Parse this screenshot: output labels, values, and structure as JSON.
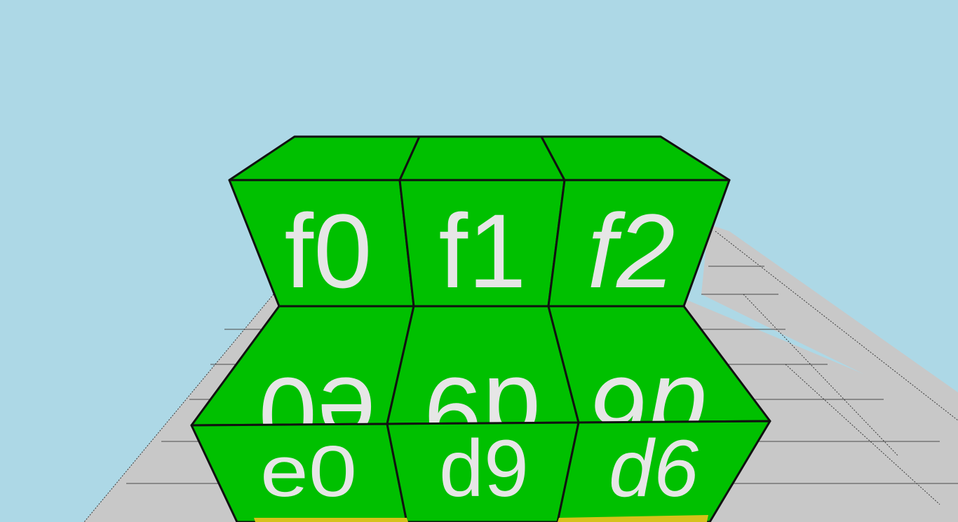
{
  "colors": {
    "sky": "#add8e6",
    "floor": "#c8c8c8",
    "cube_face": "#00c000",
    "cube_face_side": "#00b400",
    "label_text": "#e6e6e6",
    "edge": "#111111",
    "base_yellow": "#d6c21a"
  },
  "cubes": {
    "top_labels": [
      "f0",
      "f1",
      "f2"
    ],
    "upper_front_labels": [
      "f0",
      "f1",
      "f2"
    ],
    "middle_slant_labels": [
      "e0",
      "d9",
      "d6"
    ],
    "lower_front_labels": [
      "e0",
      "d9",
      "d6"
    ]
  }
}
